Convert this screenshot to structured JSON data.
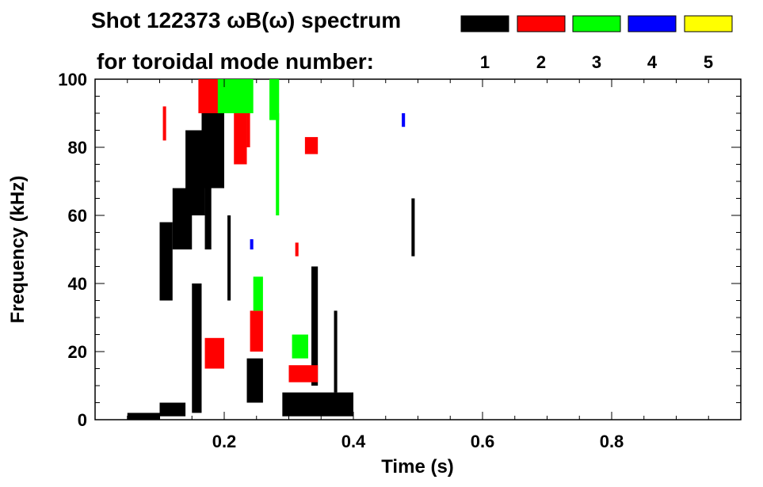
{
  "chart_data": {
    "type": "heatmap",
    "title_line1": "Shot 122373 ωB(ω) spectrum",
    "title_line2": "for toroidal mode number:",
    "xlabel": "Time (s)",
    "ylabel": "Frequency (kHz)",
    "xlim": [
      0.0,
      1.0
    ],
    "ylim": [
      0,
      100
    ],
    "xticks": [
      0.2,
      0.4,
      0.6,
      0.8
    ],
    "xtick_labels": [
      "0.2",
      "0.4",
      "0.6",
      "0.8"
    ],
    "yticks": [
      0,
      20,
      40,
      60,
      80,
      100
    ],
    "ytick_labels": [
      "0",
      "20",
      "40",
      "60",
      "80",
      "100"
    ],
    "legend_placement": "top-right",
    "modes": [
      {
        "label": "1",
        "color": "#000000"
      },
      {
        "label": "2",
        "color": "#ff0000"
      },
      {
        "label": "3",
        "color": "#00ff00"
      },
      {
        "label": "4",
        "color": "#0000ff"
      },
      {
        "label": "5",
        "color": "#ffff00"
      }
    ],
    "regions": [
      {
        "mode": "1",
        "t": [
          0.05,
          0.1
        ],
        "f": [
          0,
          2
        ]
      },
      {
        "mode": "1",
        "t": [
          0.1,
          0.12
        ],
        "f": [
          35,
          58
        ]
      },
      {
        "mode": "1",
        "t": [
          0.12,
          0.15
        ],
        "f": [
          50,
          68
        ]
      },
      {
        "mode": "1",
        "t": [
          0.14,
          0.17
        ],
        "f": [
          60,
          85
        ]
      },
      {
        "mode": "1",
        "t": [
          0.165,
          0.2
        ],
        "f": [
          68,
          90
        ]
      },
      {
        "mode": "1",
        "t": [
          0.15,
          0.165
        ],
        "f": [
          2,
          40
        ]
      },
      {
        "mode": "1",
        "t": [
          0.17,
          0.18
        ],
        "f": [
          50,
          80
        ]
      },
      {
        "mode": "1",
        "t": [
          0.205,
          0.21
        ],
        "f": [
          35,
          60
        ]
      },
      {
        "mode": "1",
        "t": [
          0.1,
          0.14
        ],
        "f": [
          1,
          5
        ]
      },
      {
        "mode": "1",
        "t": [
          0.235,
          0.26
        ],
        "f": [
          5,
          18
        ]
      },
      {
        "mode": "1",
        "t": [
          0.29,
          0.4
        ],
        "f": [
          1,
          8
        ]
      },
      {
        "mode": "1",
        "t": [
          0.335,
          0.345
        ],
        "f": [
          10,
          45
        ]
      },
      {
        "mode": "1",
        "t": [
          0.37,
          0.375
        ],
        "f": [
          8,
          32
        ]
      },
      {
        "mode": "1",
        "t": [
          0.49,
          0.495
        ],
        "f": [
          48,
          65
        ]
      },
      {
        "mode": "2",
        "t": [
          0.16,
          0.21
        ],
        "f": [
          90,
          100
        ]
      },
      {
        "mode": "2",
        "t": [
          0.105,
          0.11
        ],
        "f": [
          82,
          92
        ]
      },
      {
        "mode": "2",
        "t": [
          0.215,
          0.235
        ],
        "f": [
          75,
          100
        ]
      },
      {
        "mode": "2",
        "t": [
          0.235,
          0.24
        ],
        "f": [
          80,
          92
        ]
      },
      {
        "mode": "2",
        "t": [
          0.24,
          0.26
        ],
        "f": [
          20,
          32
        ]
      },
      {
        "mode": "2",
        "t": [
          0.17,
          0.2
        ],
        "f": [
          15,
          24
        ]
      },
      {
        "mode": "2",
        "t": [
          0.3,
          0.345
        ],
        "f": [
          11,
          16
        ]
      },
      {
        "mode": "2",
        "t": [
          0.325,
          0.345
        ],
        "f": [
          78,
          83
        ]
      },
      {
        "mode": "2",
        "t": [
          0.31,
          0.315
        ],
        "f": [
          48,
          52
        ]
      },
      {
        "mode": "3",
        "t": [
          0.19,
          0.245
        ],
        "f": [
          90,
          100
        ]
      },
      {
        "mode": "3",
        "t": [
          0.245,
          0.26
        ],
        "f": [
          32,
          42
        ]
      },
      {
        "mode": "3",
        "t": [
          0.27,
          0.285
        ],
        "f": [
          88,
          100
        ]
      },
      {
        "mode": "3",
        "t": [
          0.28,
          0.285
        ],
        "f": [
          60,
          90
        ]
      },
      {
        "mode": "3",
        "t": [
          0.305,
          0.33
        ],
        "f": [
          18,
          25
        ]
      },
      {
        "mode": "4",
        "t": [
          0.24,
          0.245
        ],
        "f": [
          50,
          53
        ]
      },
      {
        "mode": "4",
        "t": [
          0.475,
          0.48
        ],
        "f": [
          86,
          90
        ]
      }
    ]
  }
}
